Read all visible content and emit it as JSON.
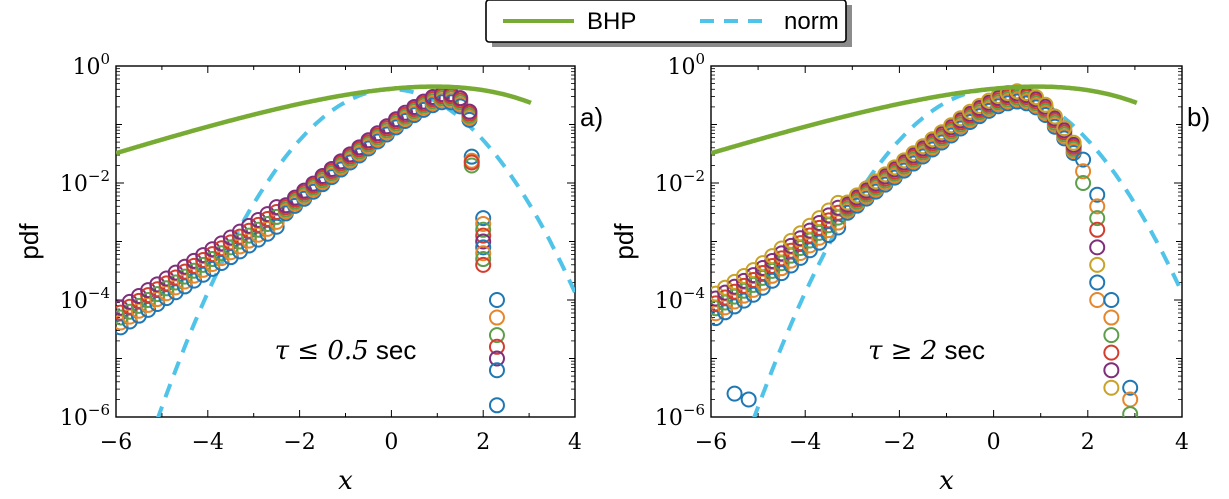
{
  "legend": {
    "entries": [
      {
        "label": "BHP",
        "color": "#77ab34",
        "style": "solid"
      },
      {
        "label": "norm",
        "color": "#4fc3e8",
        "style": "dashed"
      }
    ]
  },
  "chart_data": [
    {
      "type": "scatter",
      "panel_label": "a)",
      "annotation": {
        "math": "τ ≤ 0.5",
        "unit": " sec"
      },
      "xlabel": "x",
      "ylabel": "pdf",
      "xlim": [
        -6,
        4
      ],
      "ylim_log10": [
        -6,
        0
      ],
      "yscale": "log",
      "x_ticks": [
        "−6",
        "−4",
        "−2",
        "0",
        "2",
        "4"
      ],
      "y_ticks": [
        {
          "base": "10",
          "exp": "−6"
        },
        {
          "base": "10",
          "exp": "−4"
        },
        {
          "base": "10",
          "exp": "−2"
        },
        {
          "base": "10",
          "exp": "0"
        }
      ],
      "bhp_curve": {
        "x_range": [
          -6,
          3.05
        ]
      },
      "norm_curve": {
        "x_range": [
          -5.1,
          4
        ]
      },
      "marker_colors": [
        "#1f77b4",
        "#e6862b",
        "#5c9e4a",
        "#d43c2e",
        "#7e2e7a"
      ],
      "series_points": {
        "x": [
          -5.9,
          -5.7,
          -5.5,
          -5.3,
          -5.1,
          -4.9,
          -4.7,
          -4.5,
          -4.3,
          -4.1,
          -3.9,
          -3.7,
          -3.5,
          -3.3,
          -3.1,
          -2.9,
          -2.7,
          -2.5,
          -2.3,
          -2.1,
          -1.9,
          -1.7,
          -1.5,
          -1.3,
          -1.1,
          -0.9,
          -0.7,
          -0.5,
          -0.3,
          -0.1,
          0.1,
          0.3,
          0.5,
          0.7,
          0.9,
          1.1,
          1.3,
          1.5,
          1.7
        ],
        "log10_y": [
          -4.3,
          -4.2,
          -4.1,
          -4.0,
          -3.9,
          -3.8,
          -3.7,
          -3.6,
          -3.5,
          -3.4,
          -3.3,
          -3.2,
          -3.1,
          -3.0,
          -2.9,
          -2.8,
          -2.7,
          -2.58,
          -2.45,
          -2.32,
          -2.2,
          -2.08,
          -1.95,
          -1.83,
          -1.7,
          -1.58,
          -1.46,
          -1.34,
          -1.22,
          -1.1,
          -0.98,
          -0.87,
          -0.77,
          -0.68,
          -0.6,
          -0.55,
          -0.55,
          -0.62,
          -0.85
        ]
      },
      "outlier_points": [
        {
          "x": 1.75,
          "log10_y": [
            -1.55,
            -1.62,
            -1.7,
            -1.65
          ]
        },
        {
          "x": 2.0,
          "log10_y": [
            -2.6,
            -2.7,
            -2.8,
            -2.9,
            -3.0,
            -3.1,
            -3.2,
            -3.3,
            -3.4
          ]
        },
        {
          "x": 2.3,
          "log10_y": [
            -4.0,
            -4.3,
            -4.6,
            -4.8,
            -5.0,
            -5.2
          ]
        },
        {
          "x": 2.3,
          "log10_y": [
            -5.8
          ]
        }
      ]
    },
    {
      "type": "scatter",
      "panel_label": "b)",
      "annotation": {
        "math": "τ ≥ 2",
        "unit": " sec"
      },
      "xlabel": "x",
      "ylabel": "pdf",
      "xlim": [
        -6,
        4
      ],
      "ylim_log10": [
        -6,
        0
      ],
      "yscale": "log",
      "x_ticks": [
        "−6",
        "−4",
        "−2",
        "0",
        "2",
        "4"
      ],
      "y_ticks": [
        {
          "base": "10",
          "exp": "−6"
        },
        {
          "base": "10",
          "exp": "−4"
        },
        {
          "base": "10",
          "exp": "−2"
        },
        {
          "base": "10",
          "exp": "0"
        }
      ],
      "bhp_curve": {
        "x_range": [
          -6,
          3.05
        ]
      },
      "norm_curve": {
        "x_range": [
          -5.1,
          4
        ]
      },
      "marker_colors": [
        "#1f77b4",
        "#e6862b",
        "#5c9e4a",
        "#d43c2e",
        "#7e2e7a",
        "#c9a227"
      ],
      "series_points": {
        "x": [
          -5.9,
          -5.7,
          -5.5,
          -5.3,
          -5.1,
          -4.9,
          -4.7,
          -4.5,
          -4.3,
          -4.1,
          -3.9,
          -3.7,
          -3.5,
          -3.3,
          -3.1,
          -2.9,
          -2.7,
          -2.5,
          -2.3,
          -2.1,
          -1.9,
          -1.7,
          -1.5,
          -1.3,
          -1.1,
          -0.9,
          -0.7,
          -0.5,
          -0.3,
          -0.1,
          0.1,
          0.3,
          0.5,
          0.7,
          0.9,
          1.1,
          1.3,
          1.5,
          1.7
        ],
        "log10_y": [
          -4.1,
          -4.0,
          -3.9,
          -3.8,
          -3.7,
          -3.58,
          -3.46,
          -3.33,
          -3.2,
          -3.07,
          -2.94,
          -2.81,
          -2.68,
          -2.55,
          -2.42,
          -2.3,
          -2.18,
          -2.06,
          -1.94,
          -1.82,
          -1.7,
          -1.58,
          -1.46,
          -1.34,
          -1.22,
          -1.1,
          -0.98,
          -0.87,
          -0.77,
          -0.68,
          -0.6,
          -0.55,
          -0.52,
          -0.55,
          -0.62,
          -0.75,
          -0.95,
          -1.15,
          -1.4
        ]
      },
      "outlier_points": [
        {
          "x": 1.9,
          "log10_y": [
            -1.6,
            -1.8,
            -2.0
          ]
        },
        {
          "x": 2.2,
          "log10_y": [
            -2.2,
            -2.4,
            -2.6,
            -2.8,
            -3.1,
            -3.4,
            -3.7,
            -4.0
          ]
        },
        {
          "x": 2.5,
          "log10_y": [
            -4.0,
            -4.3,
            -4.6,
            -4.9,
            -5.2,
            -5.5
          ]
        },
        {
          "x": 2.9,
          "log10_y": [
            -5.5,
            -5.7,
            -5.95
          ]
        },
        {
          "x": -5.5,
          "log10_y": [
            -5.6
          ]
        },
        {
          "x": -5.2,
          "log10_y": [
            -5.7
          ]
        }
      ]
    }
  ]
}
